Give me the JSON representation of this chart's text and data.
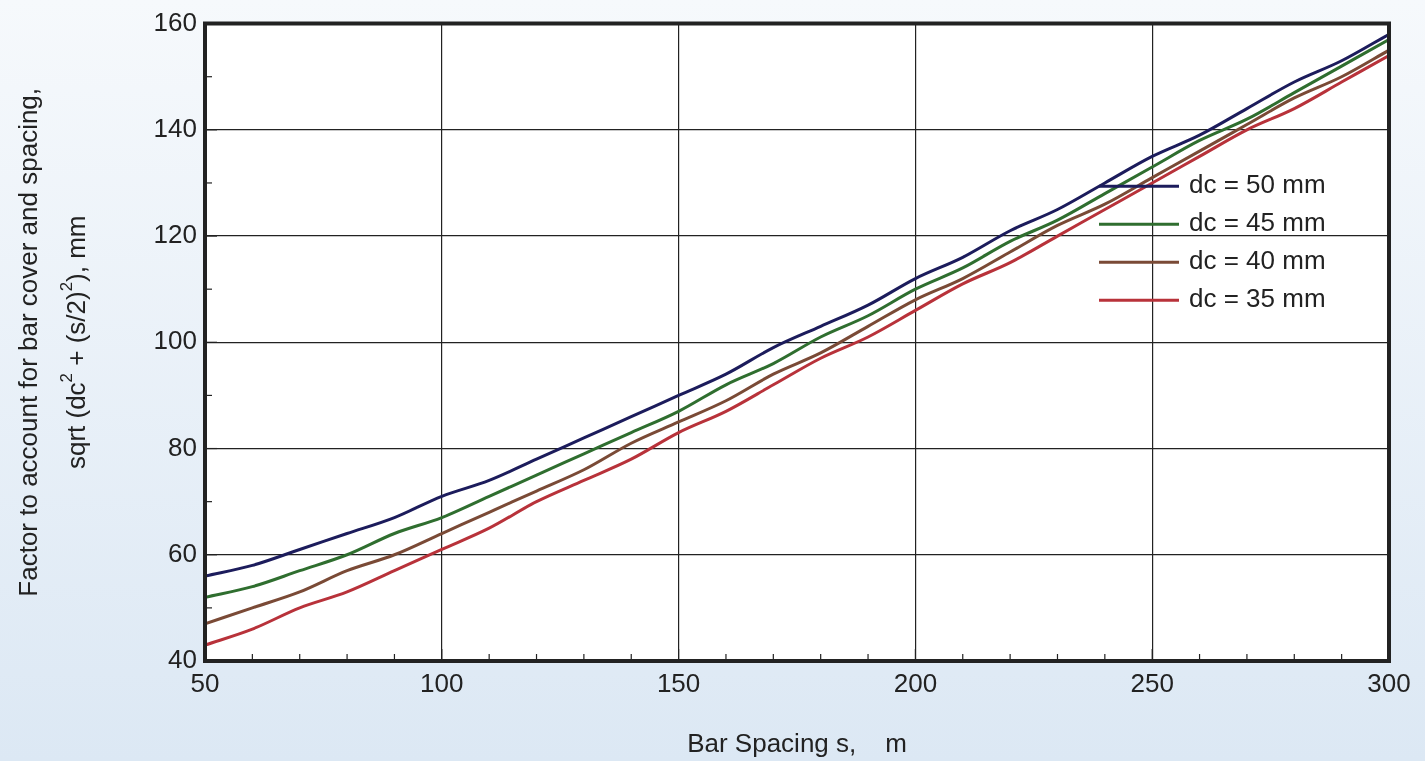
{
  "chart_data": {
    "type": "line",
    "xlabel": "Bar Spacing s,    m",
    "ylabel": "Factor to account for bar cover and spacing,\nsqrt (dc$^{2}$ + (s/2)$^{2}$), mm",
    "x": [
      50,
      60,
      70,
      80,
      90,
      100,
      110,
      120,
      130,
      140,
      150,
      160,
      170,
      180,
      190,
      200,
      210,
      220,
      230,
      240,
      250,
      260,
      270,
      280,
      290,
      300
    ],
    "series": [
      {
        "name": "dc = 50 mm",
        "color": "#1c1c5c",
        "values": [
          56,
          58,
          61,
          64,
          67,
          71,
          74,
          78,
          82,
          86,
          90,
          94,
          99,
          103,
          107,
          112,
          116,
          121,
          125,
          130,
          135,
          139,
          144,
          149,
          153,
          158
        ]
      },
      {
        "name": "dc = 45 mm",
        "color": "#2f6e2f",
        "values": [
          52,
          54,
          57,
          60,
          64,
          67,
          71,
          75,
          79,
          83,
          87,
          92,
          96,
          101,
          105,
          110,
          114,
          119,
          123,
          128,
          133,
          138,
          142,
          147,
          152,
          157
        ]
      },
      {
        "name": "dc = 40 mm",
        "color": "#7a4a36",
        "values": [
          47,
          50,
          53,
          57,
          60,
          64,
          68,
          72,
          76,
          81,
          85,
          89,
          94,
          98,
          103,
          108,
          112,
          117,
          122,
          126,
          131,
          136,
          141,
          146,
          150,
          155
        ]
      },
      {
        "name": "dc = 35 mm",
        "color": "#b8323a",
        "values": [
          43,
          46,
          50,
          53,
          57,
          61,
          65,
          70,
          74,
          78,
          83,
          87,
          92,
          97,
          101,
          106,
          111,
          115,
          120,
          125,
          130,
          135,
          140,
          144,
          149,
          154
        ]
      }
    ],
    "xlim": [
      50,
      300
    ],
    "xticks": [
      50,
      {
        "value": 60,
        "label": null
      },
      {
        "value": 70,
        "label": null
      },
      {
        "value": 80,
        "label": null
      },
      {
        "value": 90,
        "label": null
      },
      100,
      {
        "value": 110,
        "label": null
      },
      {
        "value": 120,
        "label": null
      },
      {
        "value": 130,
        "label": null
      },
      {
        "value": 140,
        "label": null
      },
      150,
      {
        "value": 160,
        "label": null
      },
      {
        "value": 170,
        "label": null
      },
      {
        "value": 180,
        "label": null
      },
      {
        "value": 190,
        "label": null
      },
      200,
      {
        "value": 210,
        "label": null
      },
      {
        "value": 220,
        "label": null
      },
      {
        "value": 230,
        "label": null
      },
      {
        "value": 240,
        "label": null
      },
      250,
      {
        "value": 260,
        "label": null
      },
      {
        "value": 270,
        "label": null
      },
      {
        "value": 280,
        "label": null
      },
      {
        "value": 290,
        "label": null
      },
      300
    ],
    "ylim": [
      40,
      160
    ],
    "yticks": [
      40,
      {
        "value": 50,
        "label": null
      },
      60,
      {
        "value": 70,
        "label": null
      },
      80,
      {
        "value": 90,
        "label": null
      },
      100,
      {
        "value": 110,
        "label": null
      },
      120,
      {
        "value": 130,
        "label": null
      },
      140,
      {
        "value": 150,
        "label": null
      },
      160
    ],
    "grid": true,
    "legend": "right",
    "marker": "none",
    "line_style": "solid"
  }
}
